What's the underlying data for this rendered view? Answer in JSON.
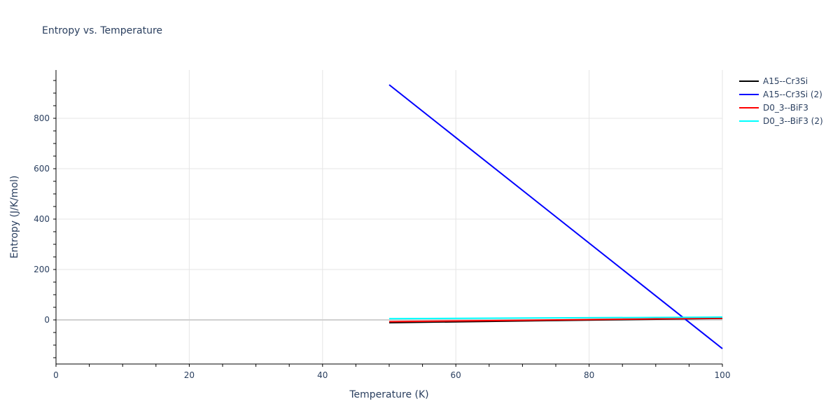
{
  "chart_data": {
    "type": "line",
    "title": "Entropy vs. Temperature",
    "xlabel": "Temperature (K)",
    "ylabel": "Entropy (J/K/mol)",
    "xlim": [
      0,
      100
    ],
    "ylim": [
      -175,
      990
    ],
    "x_ticks": [
      0,
      20,
      40,
      60,
      80,
      100
    ],
    "y_ticks": [
      0,
      200,
      400,
      600,
      800
    ],
    "grid": true,
    "legend_position": "right",
    "series": [
      {
        "name": "A15--Cr3Si",
        "color": "#000000",
        "x": [
          50,
          100
        ],
        "y": [
          -11,
          6
        ]
      },
      {
        "name": "A15--Cr3Si (2)",
        "color": "#0000ff",
        "x": [
          50,
          100
        ],
        "y": [
          933,
          -114
        ]
      },
      {
        "name": "D0_3--BiF3",
        "color": "#ff0000",
        "x": [
          50,
          100
        ],
        "y": [
          -7,
          7
        ]
      },
      {
        "name": "D0_3--BiF3 (2)",
        "color": "#00ffff",
        "x": [
          50,
          100
        ],
        "y": [
          5,
          11
        ]
      }
    ]
  }
}
